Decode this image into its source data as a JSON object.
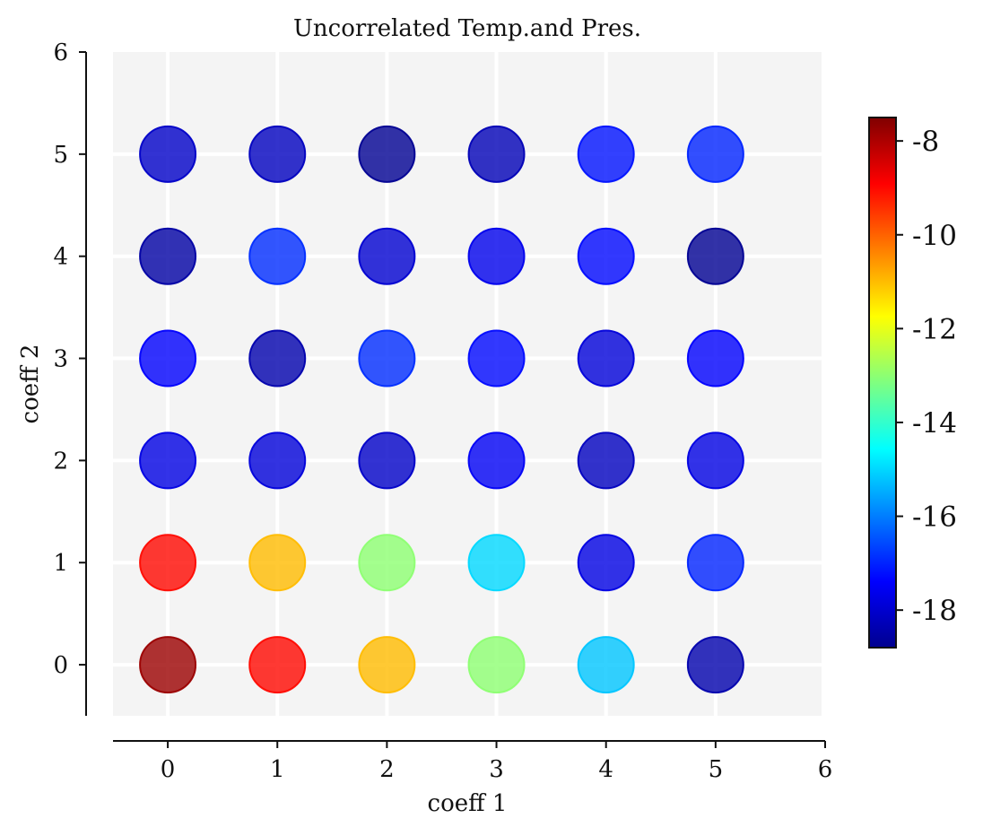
{
  "chart_data": {
    "type": "scatter",
    "title": "Uncorrelated Temp.and Pres.",
    "xlabel": "coeff 1",
    "ylabel": "coeff 2",
    "xlim": [
      -0.5,
      6
    ],
    "ylim": [
      -0.5,
      6
    ],
    "xticks": [
      0,
      1,
      2,
      3,
      4,
      5,
      6
    ],
    "yticks": [
      0,
      1,
      2,
      3,
      4,
      5,
      6
    ],
    "grid": true,
    "legend": "none",
    "colormap": "jet",
    "colorbar": {
      "range": [
        -18.8,
        -7.5
      ],
      "ticks": [
        -8,
        -10,
        -12,
        -14,
        -16,
        -18
      ],
      "tick_labels": [
        "-8",
        "-10",
        "-12",
        "-14",
        "-16",
        "-18"
      ]
    },
    "points": [
      {
        "x": 0,
        "y": 0,
        "value": -7.8
      },
      {
        "x": 1,
        "y": 0,
        "value": -9.0
      },
      {
        "x": 2,
        "y": 0,
        "value": -11.0
      },
      {
        "x": 3,
        "y": 0,
        "value": -13.0
      },
      {
        "x": 4,
        "y": 0,
        "value": -15.2
      },
      {
        "x": 5,
        "y": 0,
        "value": -18.3
      },
      {
        "x": 0,
        "y": 1,
        "value": -9.0
      },
      {
        "x": 1,
        "y": 1,
        "value": -11.0
      },
      {
        "x": 2,
        "y": 1,
        "value": -13.0
      },
      {
        "x": 3,
        "y": 1,
        "value": -15.0
      },
      {
        "x": 4,
        "y": 1,
        "value": -17.7
      },
      {
        "x": 5,
        "y": 1,
        "value": -17.0
      },
      {
        "x": 0,
        "y": 2,
        "value": -17.7
      },
      {
        "x": 1,
        "y": 2,
        "value": -17.8
      },
      {
        "x": 2,
        "y": 2,
        "value": -18.0
      },
      {
        "x": 3,
        "y": 2,
        "value": -17.5
      },
      {
        "x": 4,
        "y": 2,
        "value": -18.1
      },
      {
        "x": 5,
        "y": 2,
        "value": -17.7
      },
      {
        "x": 0,
        "y": 3,
        "value": -17.4
      },
      {
        "x": 1,
        "y": 3,
        "value": -18.3
      },
      {
        "x": 2,
        "y": 3,
        "value": -16.9
      },
      {
        "x": 3,
        "y": 3,
        "value": -17.3
      },
      {
        "x": 4,
        "y": 3,
        "value": -17.8
      },
      {
        "x": 5,
        "y": 3,
        "value": -17.4
      },
      {
        "x": 0,
        "y": 4,
        "value": -18.4
      },
      {
        "x": 1,
        "y": 4,
        "value": -16.9
      },
      {
        "x": 2,
        "y": 4,
        "value": -17.9
      },
      {
        "x": 3,
        "y": 4,
        "value": -17.6
      },
      {
        "x": 4,
        "y": 4,
        "value": -17.3
      },
      {
        "x": 5,
        "y": 4,
        "value": -18.6
      },
      {
        "x": 0,
        "y": 5,
        "value": -18.0
      },
      {
        "x": 1,
        "y": 5,
        "value": -18.1
      },
      {
        "x": 2,
        "y": 5,
        "value": -18.6
      },
      {
        "x": 3,
        "y": 5,
        "value": -18.2
      },
      {
        "x": 4,
        "y": 5,
        "value": -17.2
      },
      {
        "x": 5,
        "y": 5,
        "value": -17.0
      }
    ]
  }
}
